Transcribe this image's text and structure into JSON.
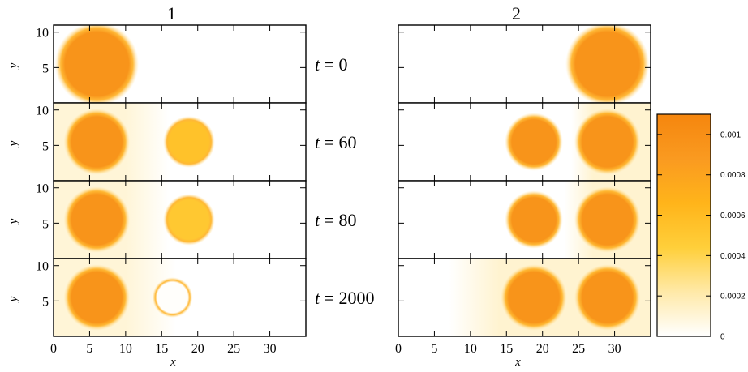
{
  "chart_data": {
    "type": "heatmap",
    "columns": [
      {
        "title": "1",
        "source": "left"
      },
      {
        "title": "2",
        "source": "right"
      }
    ],
    "rows": [
      {
        "t_var": "t",
        "t_eq": " = ",
        "t_val": "0"
      },
      {
        "t_var": "t",
        "t_eq": " = ",
        "t_val": "60"
      },
      {
        "t_var": "t",
        "t_eq": " = ",
        "t_val": "80"
      },
      {
        "t_var": "t",
        "t_eq": " = ",
        "t_val": "2000"
      }
    ],
    "xlabel": "x",
    "ylabel": "y",
    "xlim": [
      0,
      35
    ],
    "ylim": [
      0,
      11
    ],
    "xticks": [
      "0",
      "5",
      "10",
      "15",
      "20",
      "25",
      "30"
    ],
    "xtick_values": [
      0,
      5,
      10,
      15,
      20,
      25,
      30
    ],
    "yticks": [
      "5",
      "10"
    ],
    "ytick_values": [
      5,
      10
    ],
    "colorbar": {
      "ticks": [
        "0",
        "0.0002",
        "0.0004",
        "0.0006",
        "0.0008",
        "0.001"
      ],
      "tick_values": [
        0,
        0.0002,
        0.0004,
        0.0006,
        0.0008,
        0.001
      ],
      "range": [
        0,
        0.0011
      ],
      "colors": [
        "#ffffff",
        "#ffe9a8",
        "#ffcf3a",
        "#ffb41a",
        "#fa9a20",
        "#f5860e"
      ]
    },
    "panels": [
      {
        "column": 0,
        "row": 0,
        "background": 0,
        "discs": [
          {
            "cx": 6,
            "cy": 5.5,
            "r": 5.2,
            "value": 0.00095
          }
        ],
        "gradient": null
      },
      {
        "column": 0,
        "row": 1,
        "background": 0.0001,
        "discs": [
          {
            "cx": 6,
            "cy": 5.5,
            "r": 4.1,
            "value": 0.00095
          },
          {
            "cx": 18.8,
            "cy": 5.5,
            "r": 3.2,
            "value": 0.00055
          }
        ],
        "gradient": {
          "from": 10,
          "to": 16,
          "direction": "decreasing",
          "value": 0.0001
        }
      },
      {
        "column": 0,
        "row": 2,
        "background": 0.0001,
        "discs": [
          {
            "cx": 6,
            "cy": 5.5,
            "r": 4.1,
            "value": 0.00095
          },
          {
            "cx": 18.8,
            "cy": 5.5,
            "r": 3.2,
            "value": 0.0005
          }
        ],
        "gradient": {
          "from": 10,
          "to": 16,
          "direction": "decreasing",
          "value": 0.0001
        }
      },
      {
        "column": 0,
        "row": 3,
        "background": 0.0001,
        "discs": [
          {
            "cx": 6,
            "cy": 5.5,
            "r": 4.1,
            "value": 0.00095
          },
          {
            "cx": 16.5,
            "cy": 5.5,
            "r": 2.5,
            "value": 1e-05
          }
        ],
        "gradient": {
          "from": 10,
          "to": 17,
          "direction": "decreasing",
          "value": 0.0001
        }
      },
      {
        "column": 1,
        "row": 0,
        "background": 0,
        "discs": [
          {
            "cx": 29,
            "cy": 5.5,
            "r": 5.2,
            "value": 0.00095
          }
        ],
        "gradient": null
      },
      {
        "column": 1,
        "row": 1,
        "background": 0,
        "discs": [
          {
            "cx": 18.8,
            "cy": 5.5,
            "r": 3.6,
            "value": 0.00095
          },
          {
            "cx": 29,
            "cy": 5.5,
            "r": 4.1,
            "value": 0.00095
          }
        ],
        "gradient": {
          "from": 24,
          "to": 27,
          "direction": "increasing",
          "value": 0.00012
        }
      },
      {
        "column": 1,
        "row": 2,
        "background": 0,
        "discs": [
          {
            "cx": 18.8,
            "cy": 5.5,
            "r": 3.6,
            "value": 0.00095
          },
          {
            "cx": 29,
            "cy": 5.5,
            "r": 4.1,
            "value": 0.00095
          }
        ],
        "gradient": {
          "from": 23,
          "to": 27,
          "direction": "increasing",
          "value": 0.00012
        }
      },
      {
        "column": 1,
        "row": 3,
        "background": 0,
        "discs": [
          {
            "cx": 18.8,
            "cy": 5.5,
            "r": 4.1,
            "value": 0.00095
          },
          {
            "cx": 29,
            "cy": 5.5,
            "r": 4.1,
            "value": 0.00095
          }
        ],
        "gradient": {
          "from": 7,
          "to": 14,
          "direction": "increasing",
          "value": 0.00012
        }
      }
    ]
  }
}
